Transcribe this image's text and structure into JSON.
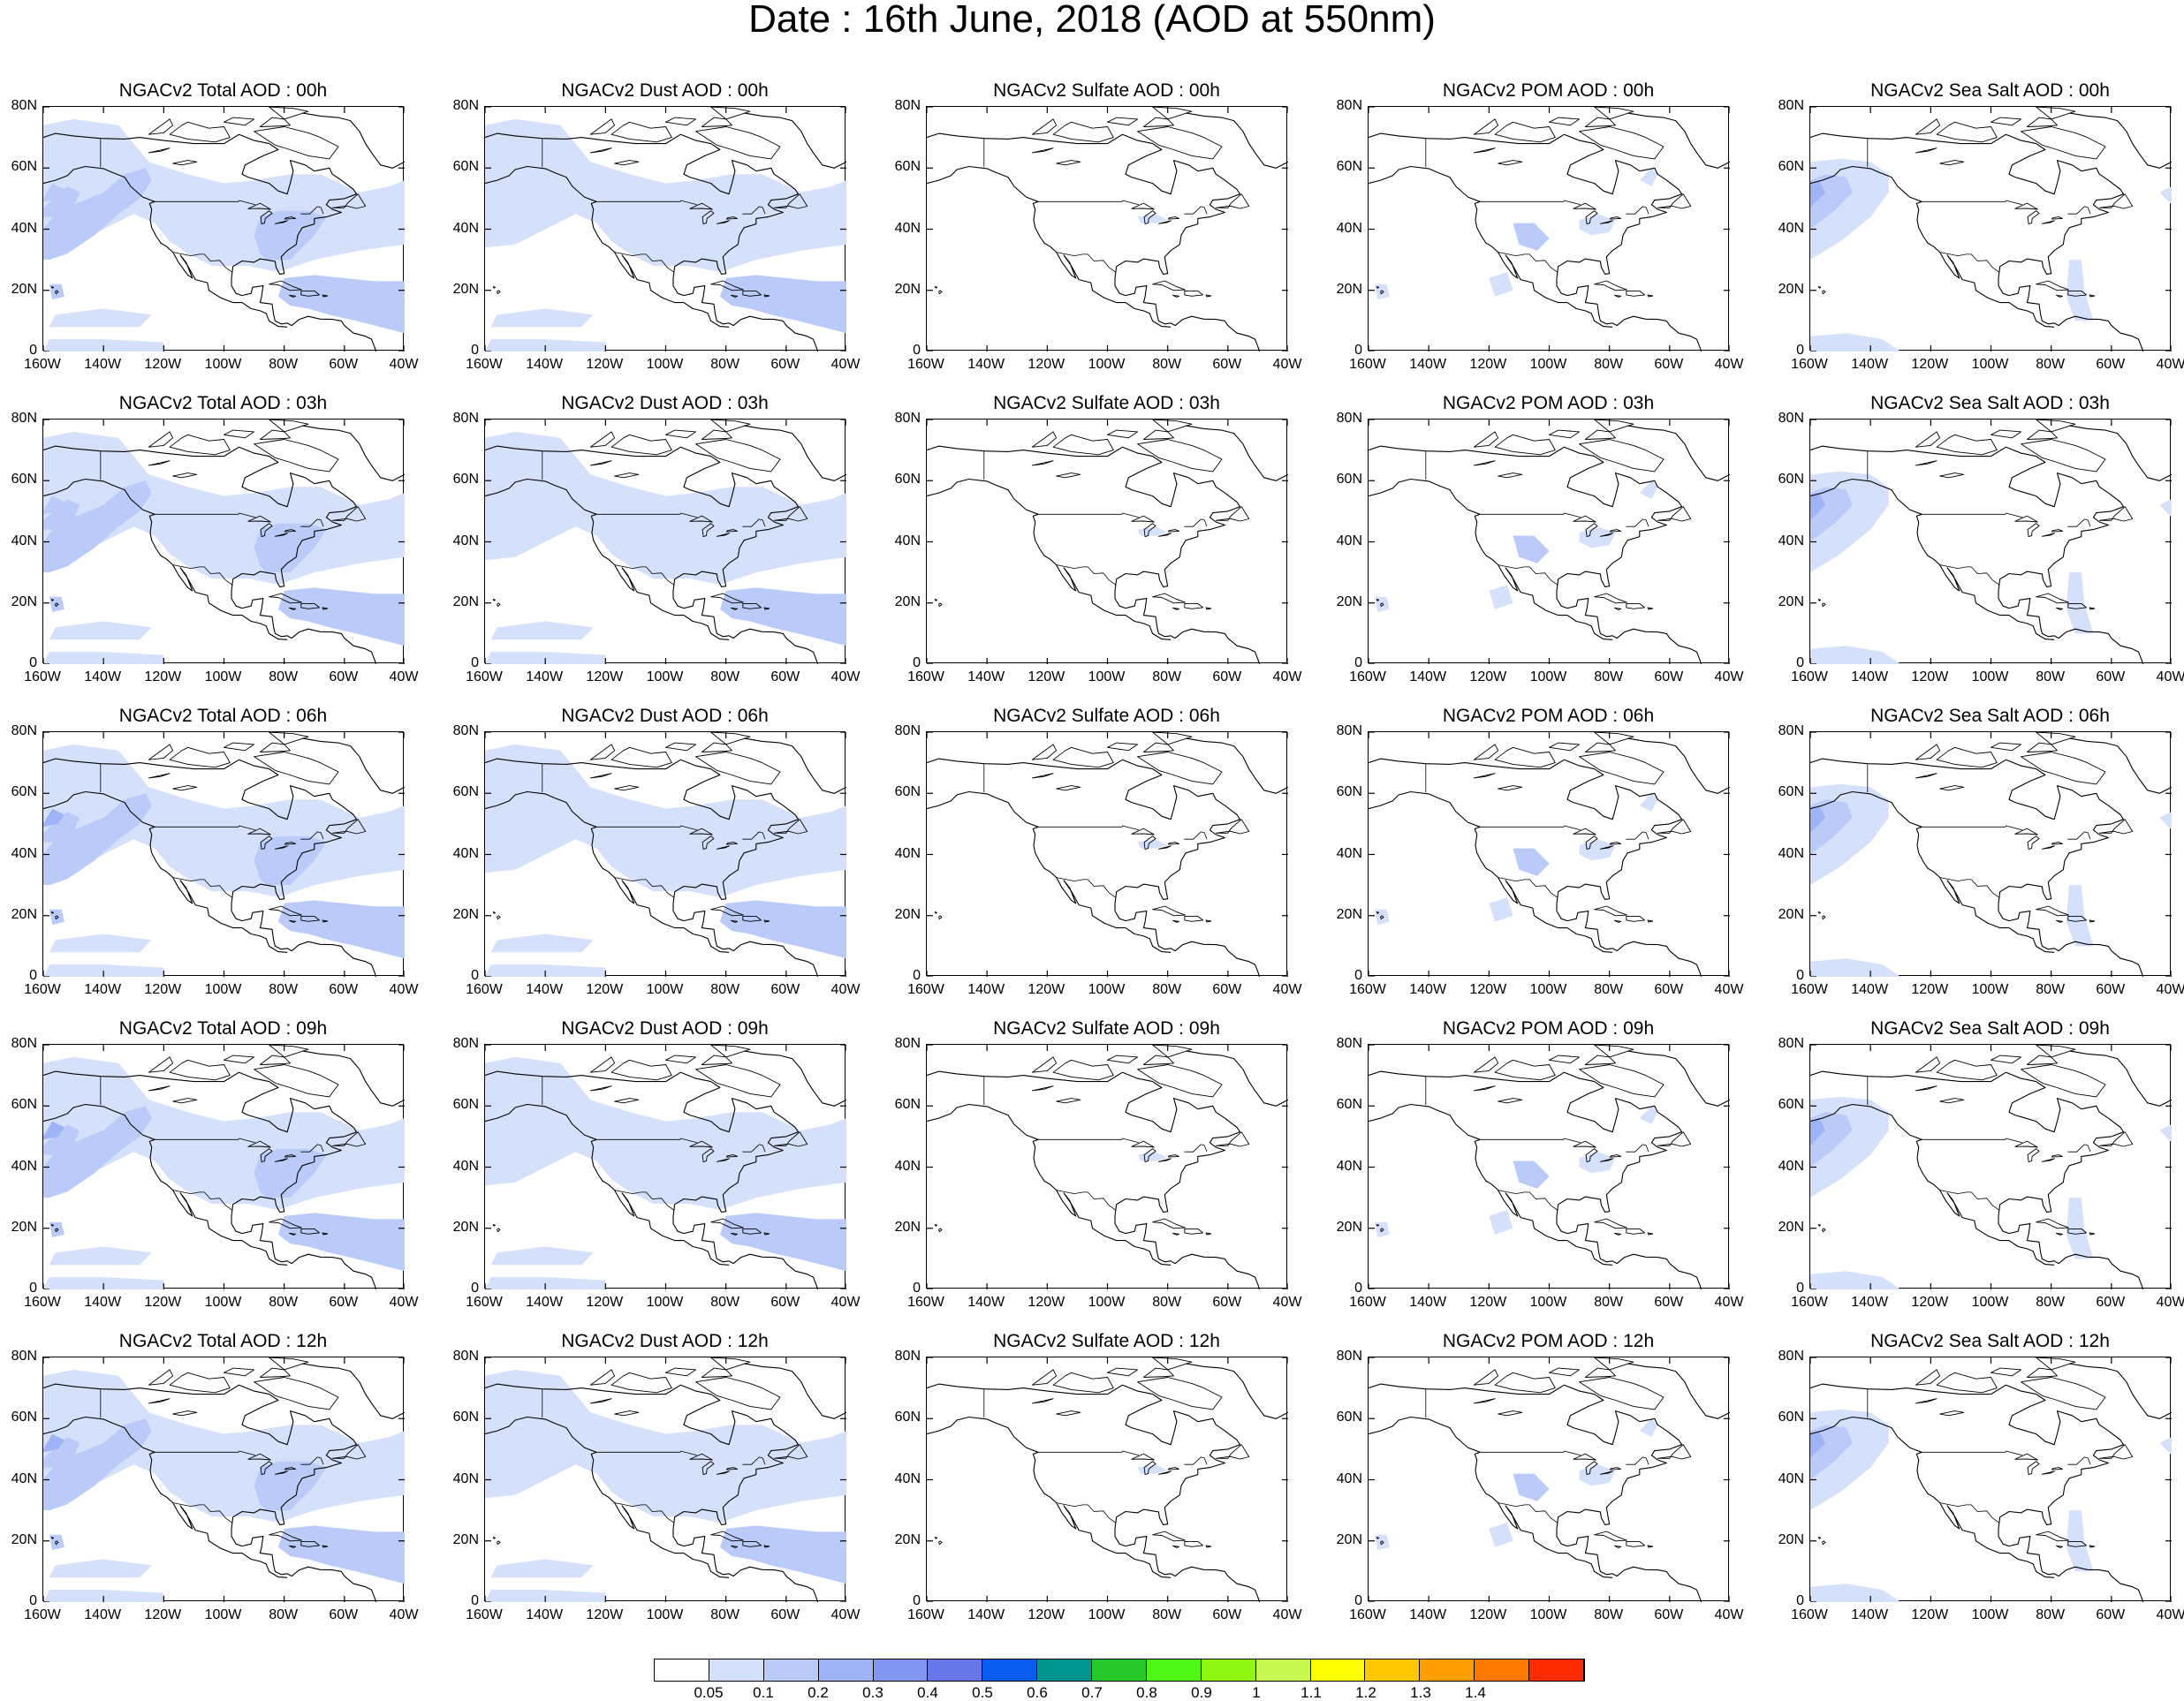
{
  "figure": {
    "title": "Date : 16th June, 2018 (AOD at 550nm)"
  },
  "axes": {
    "lat_labels": [
      "80N",
      "60N",
      "40N",
      "20N",
      "0"
    ],
    "lon_labels": [
      "160W",
      "140W",
      "120W",
      "100W",
      "80W",
      "60W",
      "40W"
    ]
  },
  "panels": [
    [
      "NGACv2 Total AOD : 00h",
      "NGACv2 Dust AOD : 00h",
      "NGACv2 Sulfate AOD : 00h",
      "NGACv2 POM AOD : 00h",
      "NGACv2 Sea Salt AOD : 00h"
    ],
    [
      "NGACv2 Total AOD : 03h",
      "NGACv2 Dust AOD : 03h",
      "NGACv2 Sulfate AOD : 03h",
      "NGACv2 POM AOD : 03h",
      "NGACv2 Sea Salt AOD : 03h"
    ],
    [
      "NGACv2 Total AOD : 06h",
      "NGACv2 Dust AOD : 06h",
      "NGACv2 Sulfate AOD : 06h",
      "NGACv2 POM AOD : 06h",
      "NGACv2 Sea Salt AOD : 06h"
    ],
    [
      "NGACv2 Total AOD : 09h",
      "NGACv2 Dust AOD : 09h",
      "NGACv2 Sulfate AOD : 09h",
      "NGACv2 POM AOD : 09h",
      "NGACv2 Sea Salt  AOD : 09h"
    ],
    [
      "NGACv2 Total AOD  : 12h",
      "NGACv2 Dust AOD : 12h",
      "NGACv2 Sulfate AOD : 12h",
      "NGACv2 POM  AOD : 12h",
      "NGACv2 Sea Salt  AOD : 12h"
    ]
  ],
  "colorbar": {
    "levels": [
      "0.05",
      "0.1",
      "0.2",
      "0.3",
      "0.4",
      "0.5",
      "0.6",
      "0.7",
      "0.8",
      "0.9",
      "1",
      "1.1",
      "1.2",
      "1.3",
      "1.4"
    ],
    "colors": [
      "#ffffff",
      "#d5e0fb",
      "#bacbf9",
      "#9fb4f6",
      "#8197f2",
      "#6777ea",
      "#0a5cee",
      "#00968f",
      "#27c82a",
      "#4ff616",
      "#8ef610",
      "#c7f84f",
      "#ffff00",
      "#ffc800",
      "#ff9e00",
      "#ff7800",
      "#ff2a00"
    ]
  },
  "field_colors": {
    "light": "#d5e0fb",
    "mid": "#bacbf9",
    "strong": "#9fb4f6",
    "max": "#8197f2"
  }
}
